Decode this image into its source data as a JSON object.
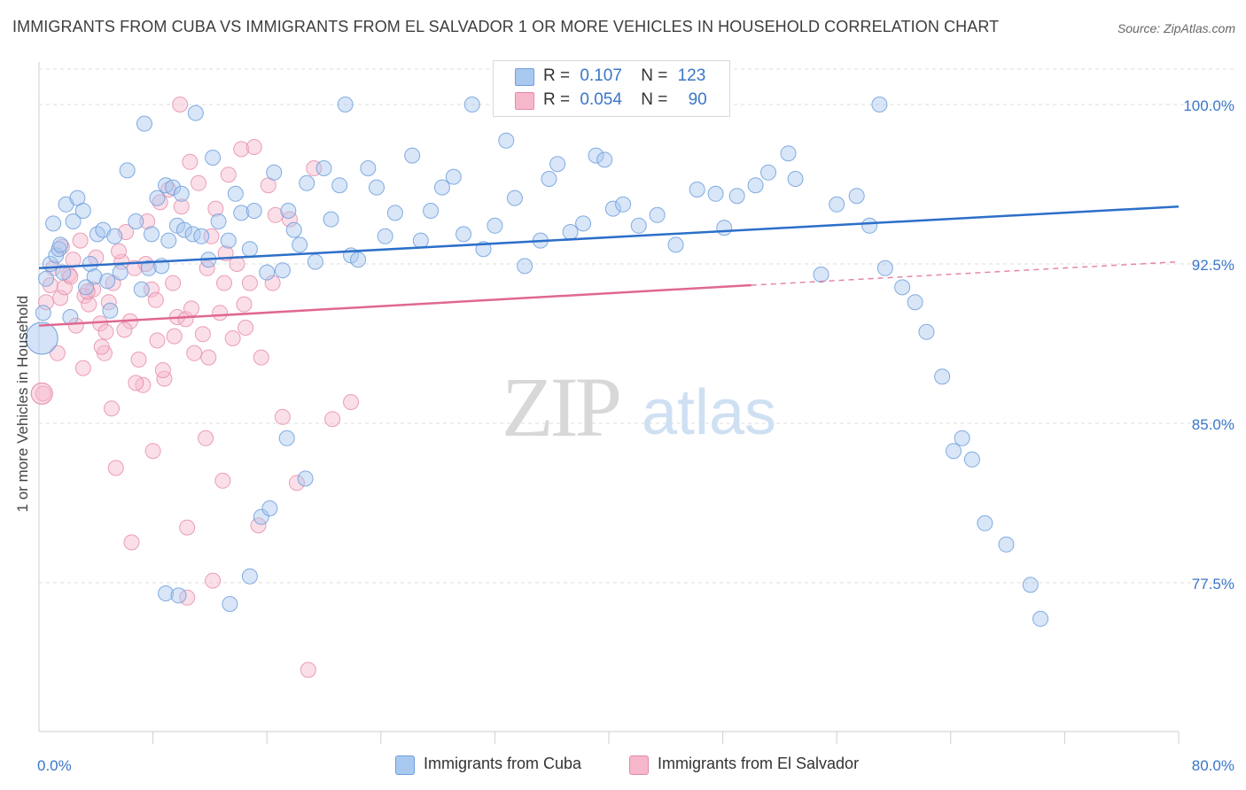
{
  "title": "IMMIGRANTS FROM CUBA VS IMMIGRANTS FROM EL SALVADOR 1 OR MORE VEHICLES IN HOUSEHOLD CORRELATION CHART",
  "source": "Source: ZipAtlas.com",
  "watermark": {
    "zip": "ZIP",
    "atlas": "atlas"
  },
  "legend": {
    "rows": [
      {
        "r_label": "R =",
        "r_value": "0.107",
        "n_label": "N =",
        "n_value": "123",
        "color": "#a9c8f0"
      },
      {
        "r_label": "R =",
        "r_value": "0.054",
        "n_label": "N =",
        "n_value": "90",
        "color": "#f6b7cb"
      }
    ]
  },
  "colors": {
    "cuba_fill": "#a9c8f0",
    "cuba_stroke": "#6f9fdc",
    "cuba_line": "#2c6fc9",
    "salvador_fill": "#f6b7cb",
    "salvador_stroke": "#e58aa6",
    "salvador_line": "#e06890",
    "tick_label": "#3a76c8",
    "grid": "#dcdcdc"
  },
  "chart_data": {
    "type": "scatter",
    "title": "IMMIGRANTS FROM CUBA VS IMMIGRANTS FROM EL SALVADOR 1 OR MORE VEHICLES IN HOUSEHOLD CORRELATION CHART",
    "xlabel": "",
    "ylabel": "1 or more Vehicles in Household",
    "x_unit": "%",
    "xlim": [
      0,
      80
    ],
    "ylim": [
      70.5,
      102.0
    ],
    "x_tick_labels": [
      {
        "value": 0,
        "label": "0.0%"
      },
      {
        "value": 80,
        "label": "80.0%"
      }
    ],
    "x_minor_ticks": [
      8,
      16,
      24,
      32,
      40,
      48,
      56,
      64,
      72
    ],
    "y_ticks": [
      {
        "value": 100.0,
        "label": "100.0%"
      },
      {
        "value": 92.5,
        "label": "92.5%"
      },
      {
        "value": 85.0,
        "label": "85.0%"
      },
      {
        "value": 77.5,
        "label": "77.5%"
      }
    ],
    "grid": true,
    "legend_position": "top-center",
    "series": [
      {
        "name": "Immigrants from Cuba",
        "r": 0.107,
        "n": 123,
        "trend": {
          "x": [
            0,
            80
          ],
          "y": [
            92.3,
            95.2
          ],
          "extrapolated": false
        },
        "points": [
          [
            0.3,
            90.2
          ],
          [
            0.5,
            91.8
          ],
          [
            0.8,
            92.5
          ],
          [
            1.0,
            94.4
          ],
          [
            1.2,
            92.9
          ],
          [
            1.4,
            93.2
          ],
          [
            1.5,
            93.4
          ],
          [
            1.7,
            92.1
          ],
          [
            1.9,
            95.3
          ],
          [
            2.2,
            90.0
          ],
          [
            2.4,
            94.5
          ],
          [
            2.7,
            95.6
          ],
          [
            3.1,
            95.0
          ],
          [
            3.3,
            91.4
          ],
          [
            3.6,
            92.5
          ],
          [
            3.9,
            91.9
          ],
          [
            4.1,
            93.9
          ],
          [
            4.5,
            94.1
          ],
          [
            4.8,
            91.7
          ],
          [
            5.0,
            90.3
          ],
          [
            5.3,
            93.8
          ],
          [
            5.7,
            92.1
          ],
          [
            6.2,
            96.9
          ],
          [
            6.8,
            94.5
          ],
          [
            7.2,
            91.3
          ],
          [
            7.4,
            99.1
          ],
          [
            7.7,
            92.3
          ],
          [
            7.9,
            93.9
          ],
          [
            8.3,
            95.6
          ],
          [
            8.6,
            92.4
          ],
          [
            8.9,
            96.2
          ],
          [
            9.1,
            93.6
          ],
          [
            9.4,
            96.1
          ],
          [
            9.7,
            94.3
          ],
          [
            10.0,
            95.8
          ],
          [
            10.2,
            94.1
          ],
          [
            10.8,
            93.9
          ],
          [
            11.0,
            99.6
          ],
          [
            11.4,
            93.8
          ],
          [
            11.9,
            92.7
          ],
          [
            12.2,
            97.5
          ],
          [
            12.6,
            94.5
          ],
          [
            13.3,
            93.6
          ],
          [
            13.8,
            95.8
          ],
          [
            14.2,
            94.9
          ],
          [
            14.8,
            93.2
          ],
          [
            15.1,
            95.0
          ],
          [
            16.0,
            92.1
          ],
          [
            16.5,
            96.8
          ],
          [
            17.1,
            92.2
          ],
          [
            17.5,
            95.0
          ],
          [
            17.9,
            94.1
          ],
          [
            18.3,
            93.4
          ],
          [
            18.8,
            96.3
          ],
          [
            19.4,
            92.6
          ],
          [
            20.0,
            97.0
          ],
          [
            20.5,
            94.6
          ],
          [
            21.1,
            96.2
          ],
          [
            21.5,
            100.0
          ],
          [
            21.9,
            92.9
          ],
          [
            22.4,
            92.7
          ],
          [
            23.1,
            97.0
          ],
          [
            23.7,
            96.1
          ],
          [
            24.3,
            93.8
          ],
          [
            25.0,
            94.9
          ],
          [
            26.2,
            97.6
          ],
          [
            26.8,
            93.6
          ],
          [
            27.5,
            95.0
          ],
          [
            28.3,
            96.1
          ],
          [
            29.1,
            96.6
          ],
          [
            29.8,
            93.9
          ],
          [
            30.4,
            100.0
          ],
          [
            31.2,
            93.2
          ],
          [
            32.0,
            94.3
          ],
          [
            32.8,
            98.3
          ],
          [
            33.4,
            95.6
          ],
          [
            34.1,
            92.4
          ],
          [
            35.2,
            93.6
          ],
          [
            35.8,
            96.5
          ],
          [
            36.4,
            97.2
          ],
          [
            37.3,
            94.0
          ],
          [
            38.2,
            94.4
          ],
          [
            39.1,
            97.6
          ],
          [
            39.7,
            97.4
          ],
          [
            40.3,
            95.1
          ],
          [
            41.0,
            95.3
          ],
          [
            42.1,
            94.3
          ],
          [
            43.4,
            94.8
          ],
          [
            44.7,
            93.4
          ],
          [
            46.2,
            96.0
          ],
          [
            47.5,
            95.8
          ],
          [
            48.1,
            94.2
          ],
          [
            49.0,
            95.7
          ],
          [
            50.3,
            96.2
          ],
          [
            51.2,
            96.8
          ],
          [
            52.6,
            97.7
          ],
          [
            53.1,
            96.5
          ],
          [
            54.9,
            92.0
          ],
          [
            56.0,
            95.3
          ],
          [
            57.4,
            95.7
          ],
          [
            58.3,
            94.3
          ],
          [
            59.0,
            100.0
          ],
          [
            59.4,
            92.3
          ],
          [
            60.6,
            91.4
          ],
          [
            61.5,
            90.7
          ],
          [
            62.3,
            89.3
          ],
          [
            63.4,
            87.2
          ],
          [
            64.2,
            83.7
          ],
          [
            64.8,
            84.3
          ],
          [
            65.5,
            83.3
          ],
          [
            66.4,
            80.3
          ],
          [
            67.9,
            79.3
          ],
          [
            69.6,
            77.4
          ],
          [
            70.3,
            75.8
          ],
          [
            8.9,
            77.0
          ],
          [
            9.8,
            76.9
          ],
          [
            13.4,
            76.5
          ],
          [
            14.8,
            77.8
          ],
          [
            15.6,
            80.6
          ],
          [
            16.2,
            81.0
          ],
          [
            17.4,
            84.3
          ],
          [
            18.7,
            82.4
          ]
        ]
      },
      {
        "name": "Immigrants from El Salvador",
        "r": 0.054,
        "n": 90,
        "trend": {
          "x": [
            0,
            50
          ],
          "y": [
            89.6,
            91.5
          ],
          "dashed_to": [
            80,
            92.6
          ]
        },
        "points": [
          [
            0.3,
            86.4
          ],
          [
            0.5,
            90.7
          ],
          [
            0.8,
            91.5
          ],
          [
            1.0,
            92.3
          ],
          [
            1.3,
            88.3
          ],
          [
            1.5,
            90.9
          ],
          [
            1.8,
            91.4
          ],
          [
            2.1,
            92.0
          ],
          [
            2.4,
            92.7
          ],
          [
            2.6,
            89.6
          ],
          [
            2.9,
            93.6
          ],
          [
            3.2,
            91.0
          ],
          [
            3.5,
            90.6
          ],
          [
            3.8,
            91.3
          ],
          [
            4.0,
            92.8
          ],
          [
            4.3,
            89.7
          ],
          [
            4.6,
            88.3
          ],
          [
            4.9,
            90.7
          ],
          [
            5.1,
            85.7
          ],
          [
            5.4,
            82.9
          ],
          [
            5.8,
            92.6
          ],
          [
            6.1,
            94.0
          ],
          [
            6.4,
            89.8
          ],
          [
            6.7,
            92.3
          ],
          [
            7.0,
            88.0
          ],
          [
            7.3,
            86.8
          ],
          [
            7.6,
            94.5
          ],
          [
            7.9,
            91.3
          ],
          [
            8.2,
            90.8
          ],
          [
            8.5,
            95.4
          ],
          [
            8.8,
            87.1
          ],
          [
            9.1,
            96.0
          ],
          [
            9.4,
            91.6
          ],
          [
            9.7,
            90.0
          ],
          [
            10.0,
            95.2
          ],
          [
            10.3,
            89.9
          ],
          [
            10.6,
            97.3
          ],
          [
            10.9,
            88.3
          ],
          [
            11.2,
            96.3
          ],
          [
            11.5,
            89.2
          ],
          [
            11.8,
            92.3
          ],
          [
            12.1,
            93.8
          ],
          [
            12.4,
            95.1
          ],
          [
            12.7,
            90.2
          ],
          [
            13.0,
            91.6
          ],
          [
            13.3,
            96.7
          ],
          [
            13.6,
            89.0
          ],
          [
            13.9,
            92.5
          ],
          [
            14.2,
            97.9
          ],
          [
            14.5,
            89.5
          ],
          [
            14.8,
            91.6
          ],
          [
            15.1,
            98.0
          ],
          [
            15.6,
            88.1
          ],
          [
            16.1,
            96.2
          ],
          [
            16.6,
            94.8
          ],
          [
            17.1,
            85.3
          ],
          [
            17.6,
            94.6
          ],
          [
            18.1,
            82.2
          ],
          [
            19.3,
            97.0
          ],
          [
            20.6,
            85.2
          ],
          [
            21.9,
            86.0
          ],
          [
            9.9,
            100.0
          ],
          [
            6.5,
            79.4
          ],
          [
            8.0,
            83.7
          ],
          [
            10.4,
            80.1
          ],
          [
            11.7,
            84.3
          ],
          [
            12.2,
            77.6
          ],
          [
            10.4,
            76.8
          ],
          [
            15.4,
            80.2
          ],
          [
            18.9,
            73.4
          ],
          [
            4.4,
            88.6
          ],
          [
            5.2,
            91.6
          ],
          [
            6.0,
            89.4
          ],
          [
            7.5,
            92.5
          ],
          [
            8.7,
            87.5
          ],
          [
            9.5,
            89.1
          ],
          [
            10.7,
            90.4
          ],
          [
            11.9,
            88.1
          ],
          [
            13.1,
            93.0
          ],
          [
            14.4,
            90.6
          ],
          [
            16.4,
            91.6
          ],
          [
            6.8,
            86.9
          ],
          [
            3.4,
            91.2
          ],
          [
            2.2,
            91.9
          ],
          [
            4.7,
            89.3
          ],
          [
            8.3,
            88.9
          ],
          [
            12.9,
            82.3
          ],
          [
            1.6,
            93.3
          ],
          [
            3.1,
            87.6
          ],
          [
            5.6,
            93.1
          ]
        ]
      }
    ]
  },
  "bottom_legend": [
    {
      "label": "Immigrants from Cuba",
      "color": "#a9c8f0"
    },
    {
      "label": "Immigrants from El Salvador",
      "color": "#f6b7cb"
    }
  ]
}
